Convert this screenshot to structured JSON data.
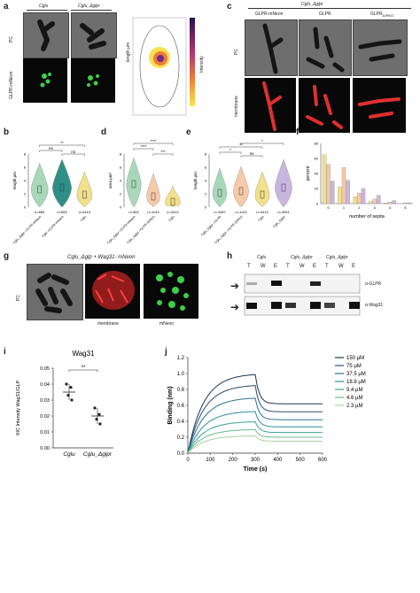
{
  "panels": {
    "a": {
      "label": "a",
      "strains": [
        "Cglu",
        "Cglu_Δglpr"
      ],
      "row_labels": [
        "PC",
        "GLPR-mNeon"
      ],
      "heatmap_ylabel": "length μm",
      "colorbar_label": "Intensity"
    },
    "b": {
      "label": "b",
      "ylabel": "length μm",
      "yticks": [
        "8",
        "6",
        "4",
        "2",
        "0"
      ],
      "categories": [
        "Cglu_Δglpr +GLPR-mNeon",
        "Cglu +GLPR-mNeon",
        "Cglu"
      ],
      "ns": [
        "n=669",
        "n=553",
        "n=3414"
      ],
      "sig": [
        "ns",
        "ns",
        "**"
      ],
      "colors": [
        "#a8d8b9",
        "#2e8f87",
        "#f2e08a"
      ]
    },
    "c": {
      "label": "c",
      "strain": "Cglu_Δglpr",
      "col_labels": [
        "GLPR-mNeon",
        "GLPR",
        "GLPR"
      ],
      "col_subscript": "D/RKO",
      "row_labels": [
        "PC",
        "membrane"
      ]
    },
    "d": {
      "label": "d",
      "ylabel": "area μm²",
      "yticks": [
        "8",
        "6",
        "4",
        "2",
        "0"
      ],
      "categories": [
        "Cglu_Δglpr +GLPR-mNeon",
        "Cglu_Δglpr +GLPR D/RKO",
        "Cglu"
      ],
      "ns": [
        "n=304",
        "n=1143",
        "n=3414"
      ],
      "sig": [
        "****",
        "****",
        "***"
      ],
      "colors": [
        "#a8d8b9",
        "#f6c9a8",
        "#f2e08a"
      ]
    },
    "e": {
      "label": "e",
      "ylabel": "length μm",
      "yticks": [
        "8",
        "6",
        "4",
        "2",
        "0"
      ],
      "categories": [
        "Cglu_Δglpr +GLPR",
        "Cglu_Δglpr +GLPR D/RKO",
        "Cglu",
        "Cglu_Δglpr"
      ],
      "ns": [
        "n=1087",
        "n=1143",
        "n=3414",
        "n=3251"
      ],
      "sig": [
        "**",
        "*",
        "*",
        "ns"
      ],
      "colors": [
        "#a8d8b9",
        "#f6c9a8",
        "#f2e08a",
        "#c9b6e0"
      ]
    },
    "f": {
      "label": "f",
      "ylabel": "percent",
      "xlabel": "number of septa",
      "yticks": [
        "80",
        "60",
        "40",
        "20",
        "0"
      ],
      "categories": [
        "0",
        "1",
        "2",
        "3",
        "4",
        "5"
      ],
      "colors": [
        "#f2e08a",
        "#f6c9a8",
        "#c9b6e0"
      ]
    },
    "g": {
      "label": "g",
      "title": "Cglu_Δglp + Wag31- mNeon",
      "row_label": "PC",
      "col_labels": [
        "membrane",
        "mNeon"
      ]
    },
    "h": {
      "label": "h",
      "strains": [
        "Cglu",
        "Cglu_Δglpr",
        "Cglu_Δglpr"
      ],
      "lanes": [
        "T",
        "W",
        "E"
      ],
      "blots": [
        "α-GLPR",
        "α-Wag31"
      ]
    },
    "i": {
      "label": "i",
      "title": "Wag31",
      "ylabel": "XIC Intensity Wag31/GLP",
      "yticks": [
        "0.05",
        "0.04",
        "0.03",
        "0.02",
        "0.01",
        "0.00"
      ],
      "xticks": [
        "Cglu",
        "Cglu_Δglpr"
      ],
      "sig": "**"
    },
    "j": {
      "label": "j",
      "xlabel": "Time (s)",
      "ylabel": "Binding (nm)",
      "xticks": [
        "0",
        "100",
        "200",
        "300",
        "400",
        "500",
        "600"
      ],
      "yticks": [
        "0.0",
        "0.2",
        "0.4",
        "0.6",
        "0.8",
        "1.0",
        "1.2"
      ],
      "legend": [
        "150 μM",
        "75 μM",
        "37.5 μM",
        "18.8 μM",
        "9.4 μM",
        "4.6 μM",
        "2.3 μM"
      ],
      "colors": [
        "#1d3557",
        "#274c77",
        "#2e6f95",
        "#2a8c9c",
        "#3aa38c",
        "#69b98a",
        "#a6d39a"
      ]
    }
  },
  "chart_data": [
    {
      "type": "scatter",
      "title": "Wag31",
      "ylabel": "XIC Intensity Wag31/GLP",
      "categories": [
        "Cglu",
        "Cglu_Δglpr"
      ],
      "series": [
        {
          "name": "Cglu",
          "values": [
            0.04,
            0.038,
            0.033,
            0.03
          ]
        },
        {
          "name": "Cglu_Δglpr",
          "values": [
            0.025,
            0.021,
            0.018,
            0.015
          ]
        }
      ],
      "means": [
        0.035,
        0.02
      ],
      "ylim": [
        0.0,
        0.05
      ]
    },
    {
      "type": "line",
      "xlabel": "Time (s)",
      "ylabel": "Binding (nm)",
      "xlim": [
        0,
        600
      ],
      "ylim": [
        0.0,
        1.2
      ],
      "association_end": 300,
      "series": [
        {
          "name": "150 μM",
          "plateau": 1.0,
          "after": 0.62
        },
        {
          "name": "75 μM",
          "plateau": 0.86,
          "after": 0.52
        },
        {
          "name": "37.5 μM",
          "plateau": 0.7,
          "after": 0.42
        },
        {
          "name": "18.8 μM",
          "plateau": 0.53,
          "after": 0.33
        },
        {
          "name": "9.4 μM",
          "plateau": 0.4,
          "after": 0.26
        },
        {
          "name": "4.6 μM",
          "plateau": 0.3,
          "after": 0.2
        },
        {
          "name": "2.3 μM",
          "plateau": 0.22,
          "after": 0.15
        }
      ]
    },
    {
      "type": "bar",
      "xlabel": "number of septa",
      "ylabel": "percent",
      "categories": [
        "0",
        "1",
        "2",
        "3",
        "4",
        "5"
      ],
      "ylim": [
        0,
        80
      ],
      "series": [
        {
          "values": [
            65,
            22,
            9,
            3,
            1,
            0
          ]
        },
        {
          "values": [
            52,
            48,
            14,
            6,
            2,
            1
          ]
        },
        {
          "values": [
            30,
            31,
            20,
            11,
            4,
            1
          ]
        }
      ]
    }
  ]
}
